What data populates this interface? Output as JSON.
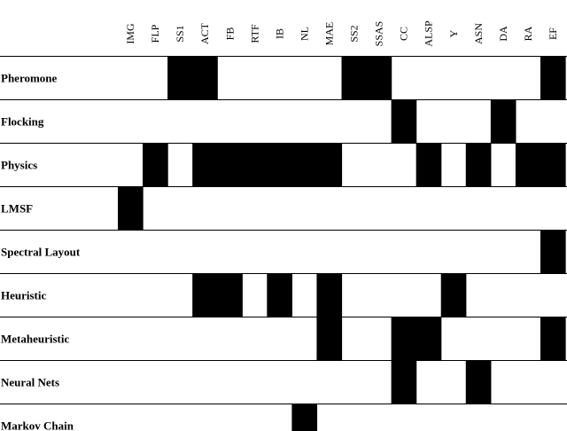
{
  "matrix": {
    "columns": [
      "IMG",
      "FLP",
      "SS1",
      "ACT",
      "FB",
      "RTF",
      "IB",
      "NL",
      "MAE",
      "SS2",
      "SSAS",
      "CC",
      "ALSP",
      "Y",
      "ASN",
      "DA",
      "RA",
      "EF"
    ],
    "rows": [
      {
        "label": "Pheromone",
        "filled": [
          "SS1",
          "ACT",
          "SS2",
          "SSAS",
          "EF"
        ]
      },
      {
        "label": "Flocking",
        "filled": [
          "CC",
          "DA"
        ]
      },
      {
        "label": "Physics",
        "filled": [
          "FLP",
          "ACT",
          "FB",
          "RTF",
          "IB",
          "NL",
          "MAE",
          "ALSP",
          "ASN",
          "RA",
          "EF"
        ]
      },
      {
        "label": "LMSF",
        "filled": [
          "IMG"
        ]
      },
      {
        "label": "Spectral Layout",
        "filled": [
          "EF"
        ]
      },
      {
        "label": "Heuristic",
        "filled": [
          "ACT",
          "FB",
          "IB",
          "MAE",
          "Y"
        ]
      },
      {
        "label": "Metaheuristic",
        "filled": [
          "MAE",
          "CC",
          "ALSP",
          "EF"
        ]
      },
      {
        "label": "Neural Nets",
        "filled": [
          "CC",
          "ASN"
        ]
      },
      {
        "label": "Markov Chain",
        "filled": [
          "NL"
        ]
      }
    ],
    "fill_color": "#000000",
    "line_color": "#000000",
    "background_color": "#ffffff"
  }
}
